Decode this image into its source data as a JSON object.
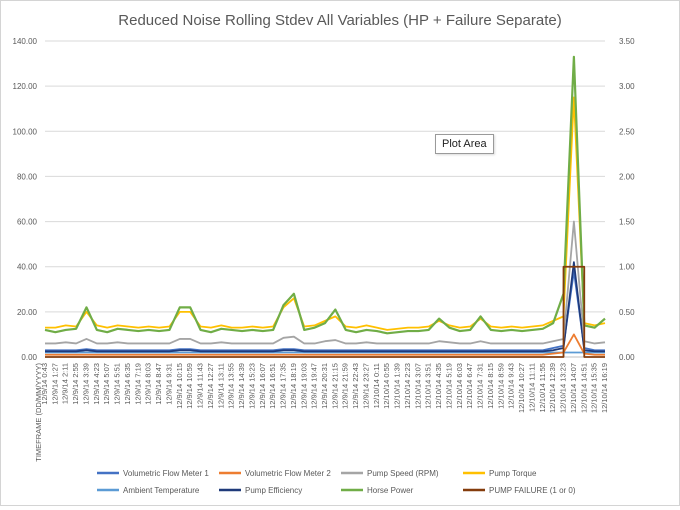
{
  "tooltip": "Plot Area",
  "chart_data": {
    "type": "line",
    "title": "Reduced Noise Rolling Stdev All Variables (HP + Failure Separate)",
    "xlabel": "TIMEFRAME (DD/MM/YYYY)",
    "ylabel": "",
    "ylim": [
      0,
      140
    ],
    "y2lim": [
      0,
      3.5
    ],
    "yticks": [
      "0.00",
      "20.00",
      "40.00",
      "60.00",
      "80.00",
      "100.00",
      "120.00",
      "140.00"
    ],
    "y2ticks": [
      "0.00",
      "0.50",
      "1.00",
      "1.50",
      "2.00",
      "2.50",
      "3.00",
      "3.50"
    ],
    "grid": true,
    "legend": "bottom",
    "categories": [
      "12/9/14 0:43",
      "12/9/14 1:27",
      "12/9/14 2:11",
      "12/9/14 2:55",
      "12/9/14 3:39",
      "12/9/14 4:23",
      "12/9/14 5:07",
      "12/9/14 5:51",
      "12/9/14 6:35",
      "12/9/14 7:19",
      "12/9/14 8:03",
      "12/9/14 8:47",
      "12/9/14 9:31",
      "12/9/14 10:15",
      "12/9/14 10:59",
      "12/9/14 11:43",
      "12/9/14 12:27",
      "12/9/14 13:11",
      "12/9/14 13:55",
      "12/9/14 14:39",
      "12/9/14 15:23",
      "12/9/14 16:07",
      "12/9/14 16:51",
      "12/9/14 17:35",
      "12/9/14 18:19",
      "12/9/14 19:03",
      "12/9/14 19:47",
      "12/9/14 20:31",
      "12/9/14 21:15",
      "12/9/14 21:59",
      "12/9/14 22:43",
      "12/9/14 23:27",
      "12/10/14 0:11",
      "12/10/14 0:55",
      "12/10/14 1:39",
      "12/10/14 2:23",
      "12/10/14 3:07",
      "12/10/14 3:51",
      "12/10/14 4:35",
      "12/10/14 5:19",
      "12/10/14 6:03",
      "12/10/14 6:47",
      "12/10/14 7:31",
      "12/10/14 8:15",
      "12/10/14 8:59",
      "12/10/14 9:43",
      "12/10/14 10:27",
      "12/10/14 11:11",
      "12/10/14 11:55",
      "12/10/14 12:39",
      "12/10/14 13:23",
      "12/10/14 14:07",
      "12/10/14 14:51",
      "12/10/14 15:35",
      "12/10/14 16:19"
    ],
    "series": [
      {
        "name": "Volumetric Flow Meter 1",
        "color": "#4472c4",
        "axis": "left",
        "values": [
          3,
          3,
          3,
          3,
          3.5,
          3,
          3,
          3,
          3,
          3,
          3,
          3,
          3,
          3.5,
          3.5,
          3,
          3,
          3,
          3,
          3,
          3,
          3,
          3,
          3.5,
          3.5,
          3,
          3,
          3,
          3,
          3,
          3,
          3,
          3,
          3,
          3,
          3,
          3,
          3,
          3,
          3,
          3,
          3,
          3,
          3,
          3,
          3,
          3,
          3,
          3,
          4,
          5,
          38,
          4,
          3,
          3
        ]
      },
      {
        "name": "Volumetric Flow Meter 2",
        "color": "#ed7d31",
        "axis": "left",
        "values": [
          1,
          1,
          1,
          1,
          1,
          1,
          1,
          1,
          1,
          1,
          1,
          1,
          1,
          1,
          1,
          1,
          1,
          1,
          1,
          1,
          1,
          1,
          1,
          1,
          1,
          1,
          1,
          1,
          1,
          1,
          1,
          1,
          1,
          1,
          1,
          1,
          1,
          1,
          1,
          1,
          1,
          1,
          1,
          1,
          1,
          1,
          1,
          1,
          1,
          1.5,
          2,
          10,
          1.5,
          1,
          1
        ]
      },
      {
        "name": "Pump Speed (RPM)",
        "color": "#a5a5a5",
        "axis": "left",
        "values": [
          6,
          6,
          6.5,
          6,
          8,
          6,
          6,
          6.5,
          6,
          6,
          6,
          6,
          6,
          8,
          8,
          6,
          6,
          6.5,
          6,
          6,
          6,
          6,
          6,
          8.5,
          9,
          6,
          6,
          7,
          7.5,
          6,
          6,
          6.5,
          6,
          6,
          6,
          6,
          6,
          6,
          7,
          6.5,
          6,
          6,
          7,
          6,
          6,
          6,
          6,
          6,
          6,
          7,
          8,
          60,
          7,
          6,
          6.5
        ]
      },
      {
        "name": "Pump Torque",
        "color": "#ffc000",
        "axis": "left",
        "values": [
          13,
          13,
          14,
          13.5,
          20,
          14,
          13,
          14,
          13.5,
          13,
          13.5,
          13,
          13.5,
          20,
          20,
          13.5,
          13,
          14,
          13,
          13,
          13.5,
          13,
          13.5,
          22,
          26,
          13.5,
          14,
          16,
          18,
          13.5,
          13,
          14,
          13,
          12,
          12.5,
          13,
          13,
          13.5,
          16,
          14,
          13,
          13.5,
          17,
          13.5,
          13,
          13.5,
          13,
          13.5,
          14,
          16,
          18,
          115,
          15,
          14,
          15
        ]
      },
      {
        "name": "Ambient Temperature",
        "color": "#5b9bd5",
        "axis": "left",
        "values": [
          2,
          2,
          2,
          2,
          2,
          2,
          2,
          2,
          2,
          2,
          2,
          2,
          2,
          2,
          2,
          2,
          2,
          2,
          2,
          2,
          2,
          2,
          2,
          2,
          2,
          2,
          2,
          2,
          2,
          2,
          2,
          2,
          2,
          2,
          2,
          2,
          2,
          2,
          2,
          2,
          2,
          2,
          2,
          2,
          2,
          2,
          2,
          2,
          2,
          2,
          2,
          2,
          2,
          2,
          2
        ]
      },
      {
        "name": "Pump Efficiency",
        "color": "#1f3a7a",
        "axis": "left",
        "values": [
          2.5,
          2.5,
          2.5,
          2.5,
          3,
          2.5,
          2.5,
          2.5,
          2.5,
          2.5,
          2.5,
          2.5,
          2.5,
          3,
          3,
          2.5,
          2.5,
          2.5,
          2.5,
          2.5,
          2.5,
          2.5,
          2.5,
          3,
          3,
          2.5,
          2.5,
          2.5,
          2.5,
          2.5,
          2.5,
          2.5,
          2.5,
          2.5,
          2.5,
          2.5,
          2.5,
          2.5,
          2.5,
          2.5,
          2.5,
          2.5,
          2.5,
          2.5,
          2.5,
          2.5,
          2.5,
          2.5,
          2.5,
          3,
          4,
          42,
          3,
          2.5,
          2.5
        ]
      },
      {
        "name": "Horse Power",
        "color": "#70ad47",
        "axis": "left",
        "values": [
          12,
          11,
          12,
          12.5,
          22,
          12,
          11,
          12.5,
          12,
          11.5,
          12,
          11.5,
          12,
          22,
          22,
          12,
          11,
          12.5,
          12,
          11.5,
          12,
          11.5,
          12,
          23,
          28,
          12,
          13,
          15,
          21,
          12,
          11,
          12,
          11.5,
          10.5,
          11,
          11.5,
          11.5,
          12,
          17,
          13,
          11.5,
          12,
          18,
          12,
          11.5,
          12,
          11.5,
          12,
          12.5,
          15,
          28,
          133,
          14,
          13,
          17
        ]
      },
      {
        "name": "PUMP FAILURE (1 or 0)",
        "color": "#843c0c",
        "axis": "right",
        "values": [
          0,
          0,
          0,
          0,
          0,
          0,
          0,
          0,
          0,
          0,
          0,
          0,
          0,
          0,
          0,
          0,
          0,
          0,
          0,
          0,
          0,
          0,
          0,
          0,
          0,
          0,
          0,
          0,
          0,
          0,
          0,
          0,
          0,
          0,
          0,
          0,
          0,
          0,
          0,
          0,
          0,
          0,
          0,
          0,
          0,
          0,
          0,
          0,
          0,
          0,
          1,
          1,
          0,
          0,
          0
        ]
      }
    ]
  }
}
